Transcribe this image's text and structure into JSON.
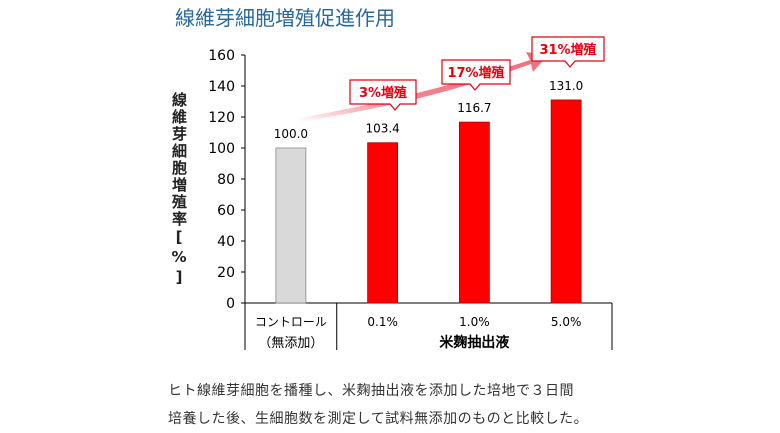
{
  "title": "線維芽細胞増殖促進作用",
  "chart_data": {
    "type": "bar",
    "ylabel": "線維芽細胞増殖率[%]",
    "ylim": [
      0,
      160
    ],
    "yticks": [
      0,
      20,
      40,
      60,
      80,
      100,
      120,
      140,
      160
    ],
    "categories": [
      "コントロール\n（無添加）",
      "0.1%",
      "1.0%",
      "5.0%"
    ],
    "category_top": [
      "コントロール",
      "0.1%",
      "1.0%",
      "5.0%"
    ],
    "control_sub": "（無添加）",
    "group_label": "米麹抽出液",
    "values": [
      100.0,
      103.4,
      116.7,
      131.0
    ],
    "value_labels": [
      "100.0",
      "103.4",
      "116.7",
      "131.0"
    ],
    "annotations": [
      "3%増殖",
      "17%増殖",
      "31%増殖"
    ],
    "colors": {
      "control": "#d9d9d9",
      "treatment": "#ff0000",
      "arrow": "#f26d7d",
      "annotation": "#e60012"
    },
    "grid": false
  },
  "caption": {
    "line1": "ヒト線維芽細胞を播種し、米麹抽出液を添加した培地で３日間",
    "line2": "培養した後、生細胞数を測定して試料無添加のものと比較した。"
  }
}
